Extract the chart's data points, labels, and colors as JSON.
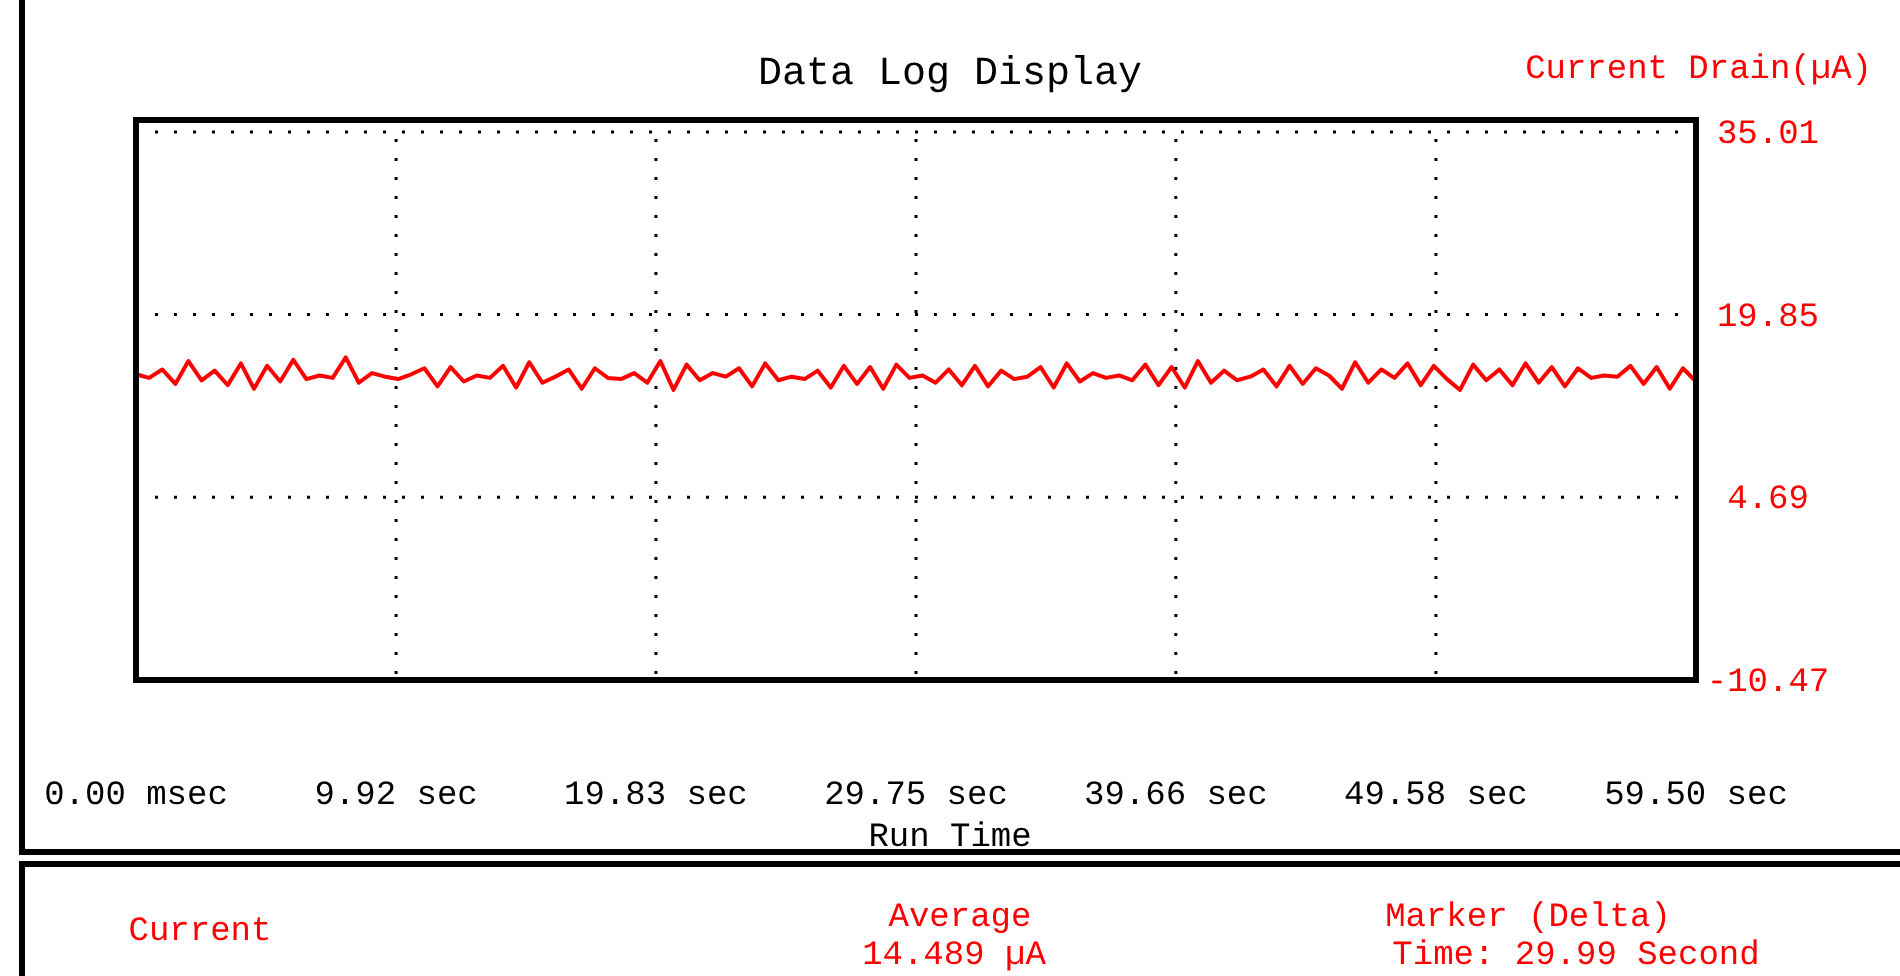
{
  "chart_data": {
    "type": "line",
    "title": "Data Log Display",
    "xlabel": "Run Time",
    "ylabel": "Current Drain(µA)",
    "x": [
      0,
      0.5,
      1,
      1.5,
      2,
      2.5,
      3,
      3.5,
      4,
      4.5,
      5,
      5.5,
      6,
      6.5,
      7,
      7.5,
      8,
      8.5,
      9,
      9.5,
      10,
      10.5,
      11,
      11.5,
      12,
      12.5,
      13,
      13.5,
      14,
      14.5,
      15,
      15.5,
      16,
      16.5,
      17,
      17.5,
      18,
      18.5,
      19,
      19.5,
      20,
      20.5,
      21,
      21.5,
      22,
      22.5,
      23,
      23.5,
      24,
      24.5,
      25,
      25.5,
      26,
      26.5,
      27,
      27.5,
      28,
      28.5,
      29,
      29.5,
      30,
      30.5,
      31,
      31.5,
      32,
      32.5,
      33,
      33.5,
      34,
      34.5,
      35,
      35.5,
      36,
      36.5,
      37,
      37.5,
      38,
      38.5,
      39,
      39.5,
      40,
      40.5,
      41,
      41.5,
      42,
      42.5,
      43,
      43.5,
      44,
      44.5,
      45,
      45.5,
      46,
      46.5,
      47,
      47.5,
      48,
      48.5,
      49,
      49.5,
      50,
      50.5,
      51,
      51.5,
      52,
      52.5,
      53,
      53.5,
      54,
      54.5,
      55,
      55.5,
      56,
      56.5,
      57,
      57.5,
      58,
      58.5,
      59,
      59.5
    ],
    "series": [
      {
        "color": "#ff0000",
        "values": [
          14.9,
          14.6,
          15.3,
          14.1,
          16.0,
          14.4,
          15.2,
          14.0,
          15.8,
          13.7,
          15.6,
          14.3,
          16.1,
          14.5,
          14.8,
          14.6,
          16.3,
          14.2,
          15.0,
          14.7,
          14.5,
          14.9,
          15.4,
          13.9,
          15.5,
          14.3,
          14.8,
          14.6,
          15.6,
          13.8,
          15.9,
          14.2,
          14.7,
          15.3,
          13.7,
          15.4,
          14.6,
          14.5,
          15.0,
          14.2,
          16.0,
          13.6,
          15.7,
          14.4,
          15.0,
          14.7,
          15.4,
          13.9,
          15.8,
          14.4,
          14.7,
          14.5,
          15.2,
          13.8,
          15.6,
          14.1,
          15.5,
          13.7,
          15.7,
          14.6,
          14.8,
          14.2,
          15.3,
          14.0,
          15.6,
          13.9,
          15.2,
          14.5,
          14.7,
          15.5,
          13.8,
          15.8,
          14.3,
          15.0,
          14.6,
          14.8,
          14.4,
          15.7,
          14.0,
          15.5,
          13.8,
          16.0,
          14.2,
          15.2,
          14.4,
          14.7,
          15.3,
          13.9,
          15.6,
          14.1,
          15.4,
          14.8,
          13.7,
          15.9,
          14.2,
          15.3,
          14.6,
          15.8,
          14.0,
          15.6,
          14.5,
          13.6,
          15.7,
          14.4,
          15.3,
          14.0,
          15.8,
          14.2,
          15.5,
          13.9,
          15.4,
          14.6,
          14.8,
          14.7,
          15.6,
          14.1,
          15.5,
          13.7,
          15.4,
          14.3
        ]
      }
    ],
    "xlim": [
      0,
      59.5
    ],
    "ylim": [
      -10.47,
      36.0
    ],
    "xticks": [
      {
        "value": 0,
        "label": "0.00 msec"
      },
      {
        "value": 9.92,
        "label": "9.92 sec"
      },
      {
        "value": 19.83,
        "label": "19.83 sec"
      },
      {
        "value": 29.75,
        "label": "29.75 sec"
      },
      {
        "value": 39.66,
        "label": "39.66 sec"
      },
      {
        "value": 49.58,
        "label": "49.58 sec"
      },
      {
        "value": 59.5,
        "label": "59.50 sec"
      }
    ],
    "yticks": [
      {
        "value": -10.47,
        "label": "-10.47"
      },
      {
        "value": 4.69,
        "label": "4.69"
      },
      {
        "value": 19.85,
        "label": "19.85"
      },
      {
        "value": 35.01,
        "label": "35.01"
      }
    ],
    "grid": true,
    "line_style": "solid",
    "annotations": [
      "Current",
      "Average",
      "14.489 µA",
      "Marker (Delta)",
      "Time: 29.99 Second"
    ]
  }
}
